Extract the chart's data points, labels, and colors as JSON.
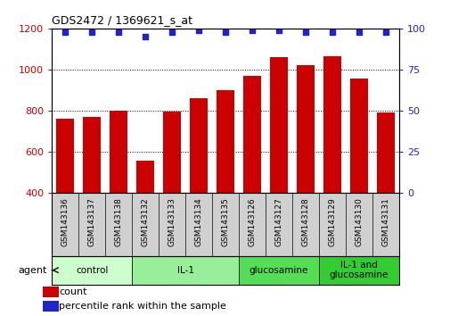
{
  "title": "GDS2472 / 1369621_s_at",
  "categories": [
    "GSM143136",
    "GSM143137",
    "GSM143138",
    "GSM143132",
    "GSM143133",
    "GSM143134",
    "GSM143135",
    "GSM143126",
    "GSM143127",
    "GSM143128",
    "GSM143129",
    "GSM143130",
    "GSM143131"
  ],
  "bar_values": [
    760,
    770,
    800,
    555,
    795,
    860,
    900,
    970,
    1060,
    1020,
    1065,
    955,
    790
  ],
  "percentile_values": [
    98,
    98,
    98,
    95,
    98,
    99,
    98,
    99,
    99,
    98,
    98,
    98,
    98
  ],
  "bar_color": "#cc0000",
  "dot_color": "#2222cc",
  "ylim_left": [
    400,
    1200
  ],
  "ylim_right": [
    0,
    100
  ],
  "yticks_left": [
    400,
    600,
    800,
    1000,
    1200
  ],
  "yticks_right": [
    0,
    25,
    50,
    75,
    100
  ],
  "groups": [
    {
      "label": "control",
      "start": 0,
      "end": 3,
      "color": "#ccffcc"
    },
    {
      "label": "IL-1",
      "start": 3,
      "end": 7,
      "color": "#99ee99"
    },
    {
      "label": "glucosamine",
      "start": 7,
      "end": 10,
      "color": "#55dd55"
    },
    {
      "label": "IL-1 and\nglucosamine",
      "start": 10,
      "end": 13,
      "color": "#33cc33"
    }
  ],
  "agent_label": "agent",
  "legend_count_label": "count",
  "legend_pct_label": "percentile rank within the sample",
  "background_color": "#ffffff",
  "tick_bg_color": "#d0d0d0",
  "tick_label_color_left": "#cc0000",
  "tick_label_color_right": "#2222cc",
  "grid_color": "#000000",
  "bar_width": 0.65,
  "fig_width": 5.06,
  "fig_height": 3.54,
  "dpi": 100
}
